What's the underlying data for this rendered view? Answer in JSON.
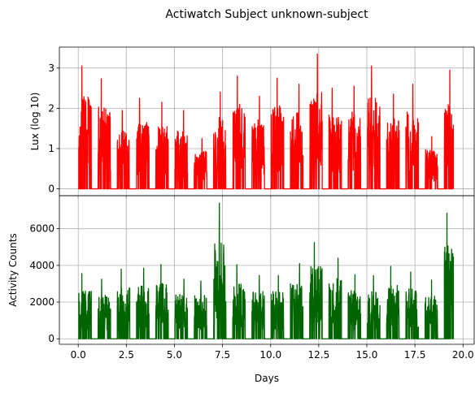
{
  "title": "Actiwatch Subject unknown-subject",
  "colors": {
    "lux_line": "#ff0000",
    "activity_line": "#006400",
    "grid": "#b0b0b0",
    "axes": "#000000"
  },
  "chart_data": [
    {
      "type": "line",
      "name": "lux-panel",
      "ylabel": "Lux (log 10)",
      "xlabel": "",
      "xlim": [
        -0.98,
        20.58
      ],
      "ylim": [
        -0.17,
        3.52
      ],
      "x_ticks": [
        0.0,
        2.5,
        5.0,
        7.5,
        10.0,
        12.5,
        15.0,
        17.5,
        20.0
      ],
      "x_tick_labels_visible": false,
      "y_ticks": [
        0,
        1,
        2,
        3
      ],
      "y_tick_labels": [
        "0",
        "1",
        "2",
        "3"
      ],
      "grid": true,
      "day_peaks": [
        {
          "day": 0,
          "peak": 3.05
        },
        {
          "day": 1,
          "peak": 2.73
        },
        {
          "day": 2,
          "peak": 1.95
        },
        {
          "day": 3,
          "peak": 2.25
        },
        {
          "day": 4,
          "peak": 2.15
        },
        {
          "day": 5,
          "peak": 1.95
        },
        {
          "day": 6,
          "peak": 1.25
        },
        {
          "day": 7,
          "peak": 2.4
        },
        {
          "day": 8,
          "peak": 2.8
        },
        {
          "day": 9,
          "peak": 2.3
        },
        {
          "day": 10,
          "peak": 2.75
        },
        {
          "day": 11,
          "peak": 2.6
        },
        {
          "day": 12,
          "peak": 3.35
        },
        {
          "day": 13,
          "peak": 2.5
        },
        {
          "day": 14,
          "peak": 2.55
        },
        {
          "day": 15,
          "peak": 3.05
        },
        {
          "day": 16,
          "peak": 2.35
        },
        {
          "day": 17,
          "peak": 2.6
        },
        {
          "day": 18,
          "peak": 1.3
        },
        {
          "day": 19,
          "peak": 2.95
        }
      ],
      "end_day": 19.5
    },
    {
      "type": "line",
      "name": "activity-panel",
      "ylabel": "Activity Counts",
      "xlabel": "Days",
      "xlim": [
        -0.98,
        20.58
      ],
      "ylim": [
        -300,
        7800
      ],
      "x_ticks": [
        0.0,
        2.5,
        5.0,
        7.5,
        10.0,
        12.5,
        15.0,
        17.5,
        20.0
      ],
      "x_tick_labels": [
        "0.0",
        "2.5",
        "5.0",
        "7.5",
        "10.0",
        "12.5",
        "15.0",
        "17.5",
        "20.0"
      ],
      "y_ticks": [
        0,
        2000,
        4000,
        6000
      ],
      "y_tick_labels": [
        "0",
        "2000",
        "4000",
        "6000"
      ],
      "grid": true,
      "day_peaks": [
        {
          "day": 0,
          "peak": 3550
        },
        {
          "day": 1,
          "peak": 3250
        },
        {
          "day": 2,
          "peak": 3800
        },
        {
          "day": 3,
          "peak": 3850
        },
        {
          "day": 4,
          "peak": 4050
        },
        {
          "day": 5,
          "peak": 3250
        },
        {
          "day": 6,
          "peak": 3150
        },
        {
          "day": 7,
          "peak": 7400
        },
        {
          "day": 8,
          "peak": 4050
        },
        {
          "day": 9,
          "peak": 3450
        },
        {
          "day": 10,
          "peak": 3450
        },
        {
          "day": 11,
          "peak": 4100
        },
        {
          "day": 12,
          "peak": 5250
        },
        {
          "day": 13,
          "peak": 4400
        },
        {
          "day": 14,
          "peak": 3500
        },
        {
          "day": 15,
          "peak": 3450
        },
        {
          "day": 16,
          "peak": 3950
        },
        {
          "day": 17,
          "peak": 3650
        },
        {
          "day": 18,
          "peak": 3200
        },
        {
          "day": 19,
          "peak": 6850
        }
      ],
      "end_day": 19.5
    }
  ]
}
